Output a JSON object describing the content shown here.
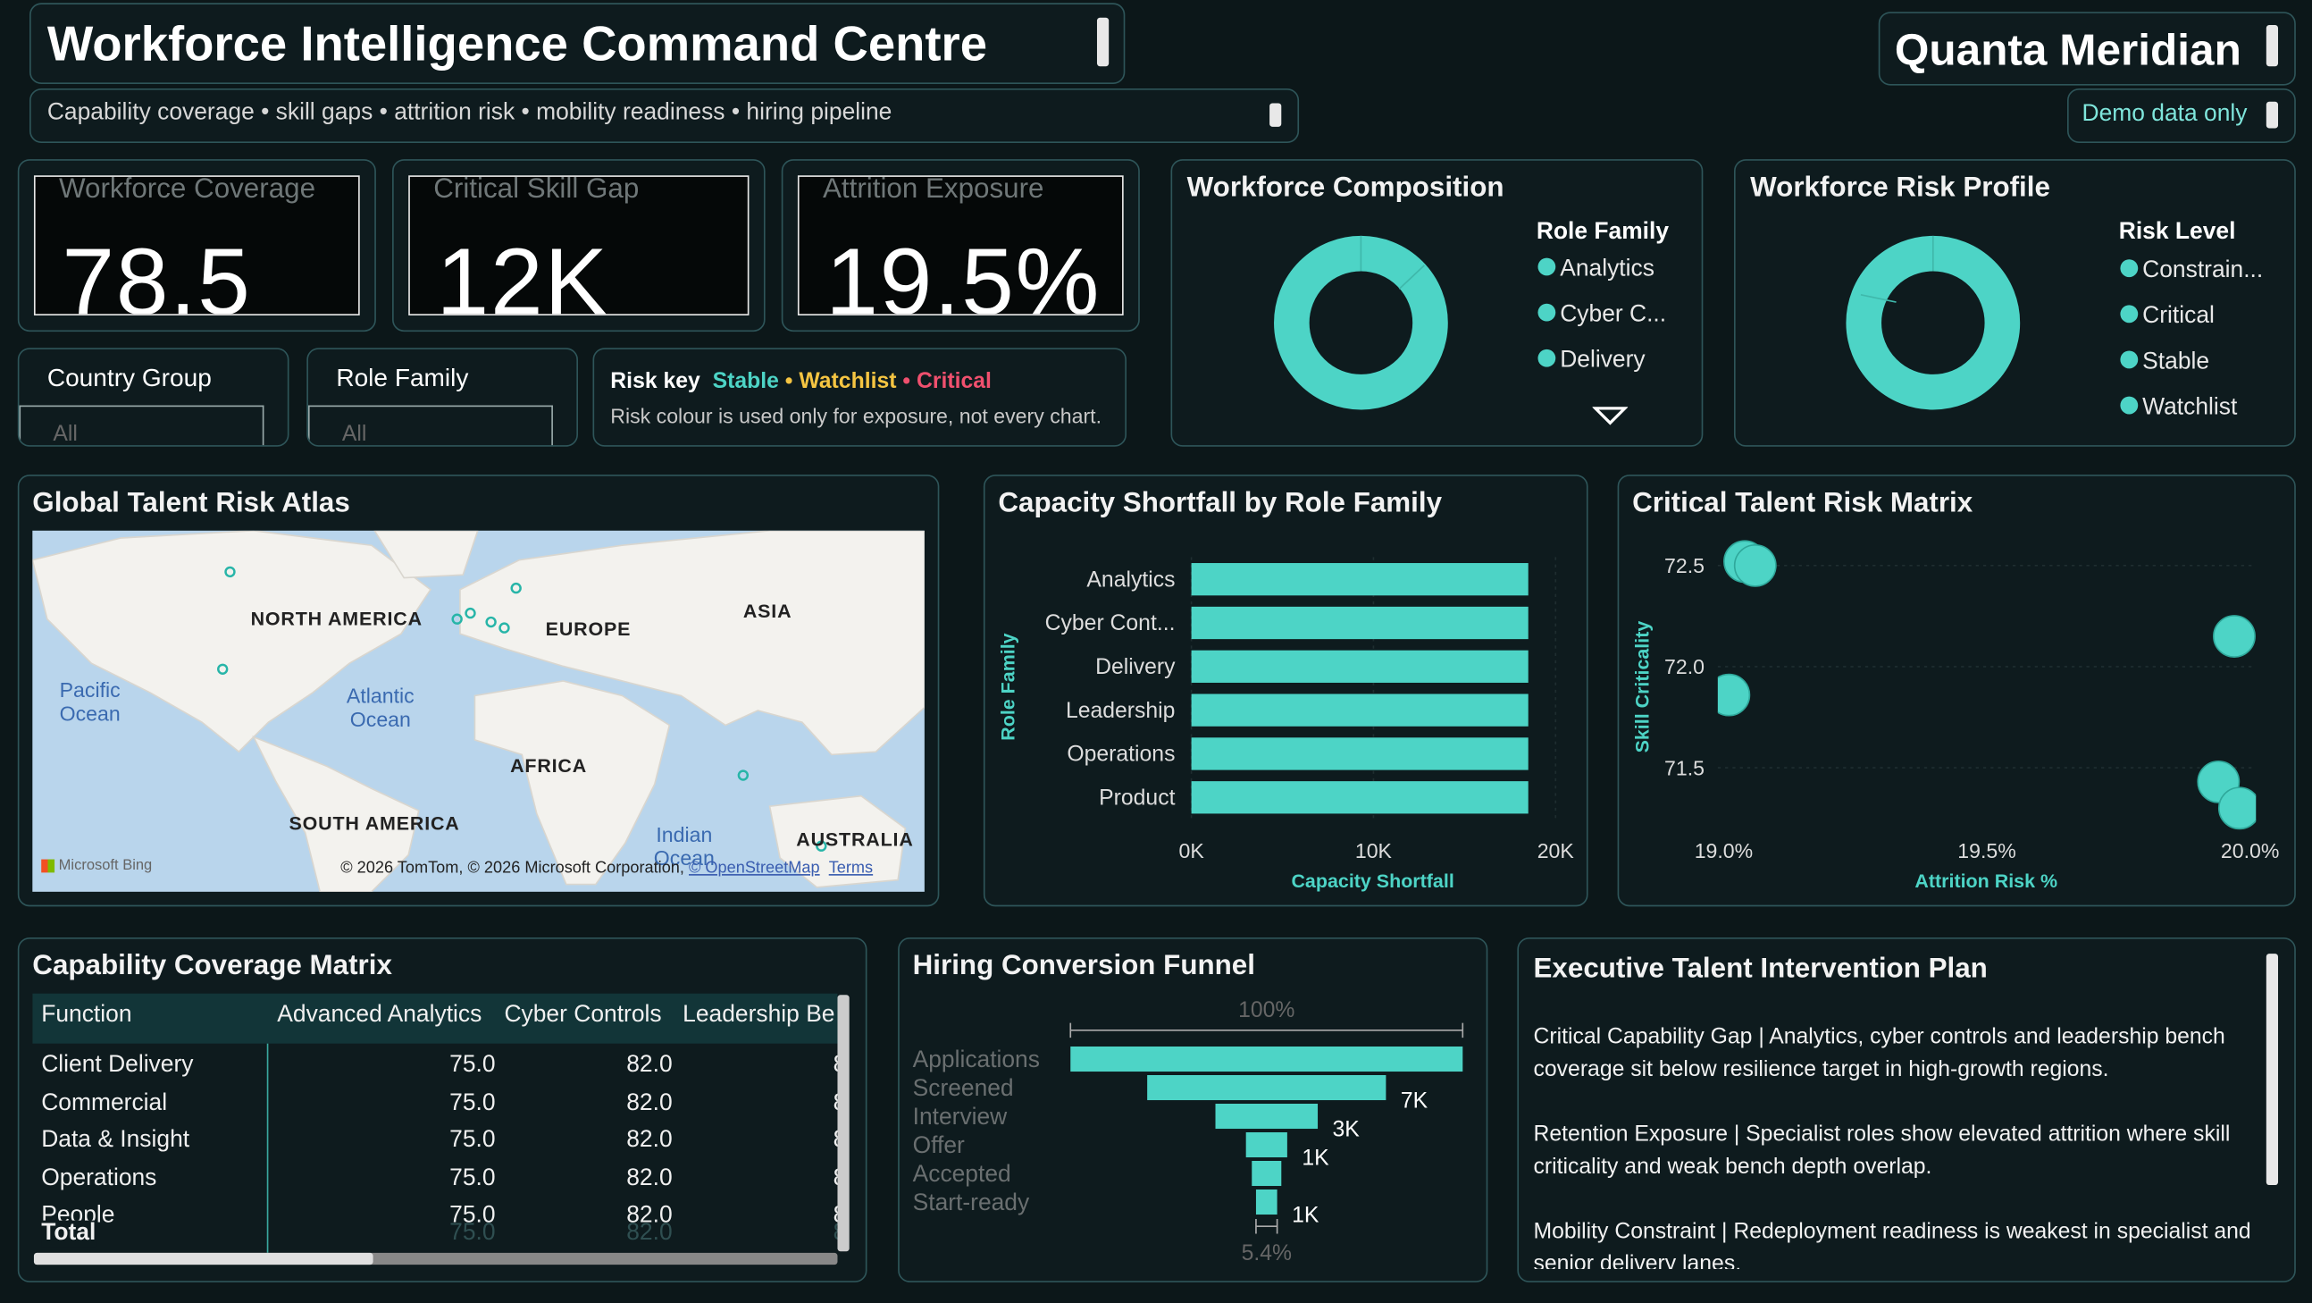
{
  "header": {
    "title": "Workforce Intelligence Command Centre",
    "subtitle": "Capability coverage • skill gaps • attrition risk • mobility readiness • hiring pipeline",
    "brand": "Quanta Meridian",
    "demo_note": "Demo data only"
  },
  "kpis": [
    {
      "label": "Workforce Coverage",
      "value": "78.5"
    },
    {
      "label": "Critical Skill Gap",
      "value": "12K"
    },
    {
      "label": "Attrition Exposure",
      "value": "19.5%"
    }
  ],
  "slicers": [
    {
      "label": "Country Group",
      "value": "All"
    },
    {
      "label": "Role Family",
      "value": "All"
    }
  ],
  "risk_key": {
    "label": "Risk key",
    "separator": "•",
    "levels": [
      {
        "name": "Stable",
        "color": "#4dd4c6"
      },
      {
        "name": "Watchlist",
        "color": "#f5c542"
      },
      {
        "name": "Critical",
        "color": "#f0506e"
      }
    ],
    "note": "Risk colour is used only for exposure, not every chart."
  },
  "composition": {
    "title": "Workforce Composition",
    "legend_title": "Role Family",
    "legend": [
      "Analytics",
      "Cyber C...",
      "Delivery"
    ],
    "color": "#4dd4c6"
  },
  "risk_profile": {
    "title": "Workforce Risk Profile",
    "legend_title": "Risk Level",
    "legend": [
      "Constrain...",
      "Critical",
      "Stable",
      "Watchlist"
    ],
    "color": "#4dd4c6"
  },
  "map": {
    "title": "Global Talent Risk Atlas",
    "labels": [
      "NORTH AMERICA",
      "EUROPE",
      "ASIA",
      "Pacific Ocean",
      "Atlantic Ocean",
      "AFRICA",
      "SOUTH AMERICA",
      "Indian Ocean",
      "AUSTRALIA"
    ],
    "logo": "Microsoft Bing",
    "attribution": "© 2026 TomTom, © 2026 Microsoft Corporation,",
    "osm": "© OpenStreetMap",
    "terms": "Terms"
  },
  "chart_data": [
    {
      "type": "bar",
      "title": "Capacity Shortfall by Role Family",
      "categories": [
        "Analytics",
        "Cyber Cont...",
        "Delivery",
        "Leadership",
        "Operations",
        "Product"
      ],
      "values": [
        18500,
        18500,
        18500,
        18500,
        18500,
        18500
      ],
      "color": "#4dd4c6",
      "xlim": [
        0,
        20000
      ],
      "xticks": [
        {
          "value": 0,
          "label": "0K"
        },
        {
          "value": 10000,
          "label": "10K"
        },
        {
          "value": 20000,
          "label": "20K"
        }
      ],
      "x_label": "Capacity Shortfall",
      "y_label": "Role Family"
    },
    {
      "type": "scatter",
      "title": "Critical Talent Risk Matrix",
      "x": [
        19.04,
        19.06,
        19.97,
        19.01,
        19.94,
        19.98
      ],
      "values": [
        72.52,
        72.5,
        72.15,
        71.86,
        71.43,
        71.3
      ],
      "color": "#4dd4c6",
      "xlim": [
        19.0,
        20.0
      ],
      "ylim": [
        71.2,
        72.6
      ],
      "xticks": [
        {
          "value": 19.0,
          "label": "19.0%"
        },
        {
          "value": 19.5,
          "label": "19.5%"
        },
        {
          "value": 20.0,
          "label": "20.0%"
        }
      ],
      "yticks": [
        72.5,
        {
          "value": 72.0,
          "label": "72.0"
        },
        71.5
      ],
      "x_label": "Attrition Risk %",
      "y_label": "Skill Criticality"
    },
    {
      "type": "funnel",
      "title": "Hiring Conversion Funnel",
      "categories": [
        "Applications",
        "Screened",
        "Interview",
        "Offer",
        "Accepted",
        "Start-ready"
      ],
      "values": [
        11500,
        7000,
        3000,
        1210,
        865,
        620
      ],
      "value_labels": [
        null,
        "7K",
        "3K",
        "1K",
        null,
        "1K"
      ],
      "top_label": "100%",
      "bottom_label": "5.4%",
      "color": "#4dd4c6"
    }
  ],
  "table": {
    "title": "Capability Coverage Matrix",
    "columns": [
      "Function",
      "Advanced Analytics",
      "Cyber Controls",
      "Leadership Be"
    ],
    "rows": [
      [
        "Client Delivery",
        "75.0",
        "82.0",
        "8"
      ],
      [
        "Commercial",
        "75.0",
        "82.0",
        "8"
      ],
      [
        "Data & Insight",
        "75.0",
        "82.0",
        "8"
      ],
      [
        "Operations",
        "75.0",
        "82.0",
        "8"
      ],
      [
        "People",
        "75.0",
        "82.0",
        "8"
      ]
    ],
    "total": [
      "Total",
      "75.0",
      "82.0",
      "8"
    ]
  },
  "plan": {
    "title": "Executive Talent Intervention Plan",
    "paragraphs": [
      "Critical Capability Gap | Analytics, cyber controls and leadership bench coverage sit below resilience target in high-growth regions.",
      "Retention Exposure | Specialist roles show elevated attrition where skill criticality and weak bench depth overlap.",
      "Mobility Constraint | Redeployment readiness is weakest in specialist and senior delivery lanes."
    ]
  }
}
